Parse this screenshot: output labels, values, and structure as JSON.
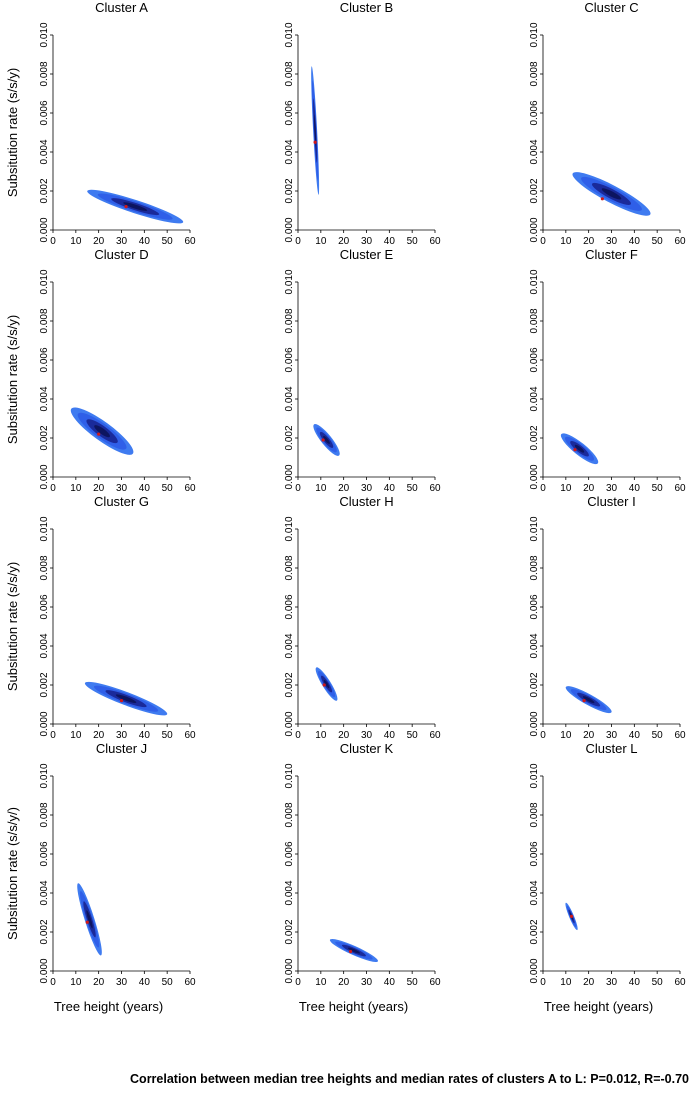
{
  "figure": {
    "caption": "Correlation between median tree heights and median rates of clusters A to L: P=0.012, R=-0.70",
    "colors": {
      "outer": "#3f7bf0",
      "middle": "#2f5fe8",
      "inner": "#1a2a9a",
      "core": "#0d1560",
      "median": "#d01818",
      "axis": "#000000"
    }
  },
  "chart_data": [
    {
      "type": "scatter",
      "title": "Cluster A",
      "xlabel": "",
      "ylabel": "Subsitution rate (s/s/y)",
      "xlim": [
        0,
        60
      ],
      "ylim": [
        0,
        0.01
      ],
      "xticks": [
        "0",
        "10",
        "20",
        "30",
        "40",
        "50",
        "60"
      ],
      "yticks": [
        "0.000",
        "0.002",
        "0.004",
        "0.006",
        "0.008",
        "0.010"
      ],
      "hpd_region": {
        "x_range": [
          15,
          57
        ],
        "y_range": [
          0.0004,
          0.002
        ]
      },
      "median": {
        "x": 32,
        "y": 0.0012
      }
    },
    {
      "type": "scatter",
      "title": "Cluster B",
      "xlabel": "",
      "ylabel": "",
      "xlim": [
        0,
        60
      ],
      "ylim": [
        0,
        0.01
      ],
      "xticks": [
        "0",
        "10",
        "20",
        "30",
        "40",
        "50",
        "60"
      ],
      "yticks": [
        "0.000",
        "0.002",
        "0.004",
        "0.006",
        "0.008",
        "0.010"
      ],
      "hpd_region": {
        "x_range": [
          6,
          9
        ],
        "y_range": [
          0.0018,
          0.0084
        ]
      },
      "median": {
        "x": 7.5,
        "y": 0.0045
      }
    },
    {
      "type": "scatter",
      "title": "Cluster C",
      "xlabel": "",
      "ylabel": "",
      "xlim": [
        0,
        60
      ],
      "ylim": [
        0,
        0.01
      ],
      "xticks": [
        "0",
        "10",
        "20",
        "30",
        "40",
        "50",
        "60"
      ],
      "yticks": [
        "0.000",
        "0.002",
        "0.004",
        "0.006",
        "0.008",
        "0.010"
      ],
      "hpd_region": {
        "x_range": [
          13,
          47
        ],
        "y_range": [
          0.0008,
          0.0029
        ]
      },
      "median": {
        "x": 26,
        "y": 0.0016
      }
    },
    {
      "type": "scatter",
      "title": "Cluster D",
      "xlabel": "",
      "ylabel": "Subsitution rate (s/s/y)",
      "xlim": [
        0,
        60
      ],
      "ylim": [
        0,
        0.01
      ],
      "xticks": [
        "0",
        "10",
        "20",
        "30",
        "40",
        "50",
        "60"
      ],
      "yticks": [
        "0.000",
        "0.002",
        "0.004",
        "0.006",
        "0.008",
        "0.010"
      ],
      "hpd_region": {
        "x_range": [
          8,
          35
        ],
        "y_range": [
          0.0012,
          0.0035
        ]
      },
      "median": {
        "x": 20,
        "y": 0.0022
      }
    },
    {
      "type": "scatter",
      "title": "Cluster E",
      "xlabel": "",
      "ylabel": "",
      "xlim": [
        0,
        60
      ],
      "ylim": [
        0,
        0.01
      ],
      "xticks": [
        "0",
        "10",
        "20",
        "30",
        "40",
        "50",
        "60"
      ],
      "yticks": [
        "0.000",
        "0.002",
        "0.004",
        "0.006",
        "0.008",
        "0.010"
      ],
      "hpd_region": {
        "x_range": [
          7,
          18
        ],
        "y_range": [
          0.0011,
          0.0027
        ]
      },
      "median": {
        "x": 11,
        "y": 0.0019
      }
    },
    {
      "type": "scatter",
      "title": "Cluster F",
      "xlabel": "",
      "ylabel": "",
      "xlim": [
        0,
        60
      ],
      "ylim": [
        0,
        0.01
      ],
      "xticks": [
        "0",
        "10",
        "20",
        "30",
        "40",
        "50",
        "60"
      ],
      "yticks": [
        "0.000",
        "0.002",
        "0.004",
        "0.006",
        "0.008",
        "0.010"
      ],
      "hpd_region": {
        "x_range": [
          8,
          24
        ],
        "y_range": [
          0.0007,
          0.0022
        ]
      },
      "median": {
        "x": 14,
        "y": 0.0014
      }
    },
    {
      "type": "scatter",
      "title": "Cluster G",
      "xlabel": "",
      "ylabel": "Subsitution rate (s/s/y)",
      "xlim": [
        0,
        60
      ],
      "ylim": [
        0,
        0.01
      ],
      "xticks": [
        "0",
        "10",
        "20",
        "30",
        "40",
        "50",
        "60"
      ],
      "yticks": [
        "0.000",
        "0.002",
        "0.004",
        "0.006",
        "0.008",
        "0.010"
      ],
      "hpd_region": {
        "x_range": [
          14,
          50
        ],
        "y_range": [
          0.0005,
          0.0021
        ]
      },
      "median": {
        "x": 30,
        "y": 0.0012
      }
    },
    {
      "type": "scatter",
      "title": "Cluster H",
      "xlabel": "",
      "ylabel": "",
      "xlim": [
        0,
        60
      ],
      "ylim": [
        0,
        0.01
      ],
      "xticks": [
        "0",
        "10",
        "20",
        "30",
        "40",
        "50",
        "60"
      ],
      "yticks": [
        "0.000",
        "0.002",
        "0.004",
        "0.006",
        "0.008",
        "0.010"
      ],
      "hpd_region": {
        "x_range": [
          8,
          17
        ],
        "y_range": [
          0.0012,
          0.0029
        ]
      },
      "median": {
        "x": 11.5,
        "y": 0.002
      }
    },
    {
      "type": "scatter",
      "title": "Cluster I",
      "xlabel": "",
      "ylabel": "",
      "xlim": [
        0,
        60
      ],
      "ylim": [
        0,
        0.01
      ],
      "xticks": [
        "0",
        "10",
        "20",
        "30",
        "40",
        "50",
        "60"
      ],
      "yticks": [
        "0.000",
        "0.002",
        "0.004",
        "0.006",
        "0.008",
        "0.010"
      ],
      "hpd_region": {
        "x_range": [
          10,
          30
        ],
        "y_range": [
          0.0006,
          0.0019
        ]
      },
      "median": {
        "x": 18,
        "y": 0.0012
      }
    },
    {
      "type": "scatter",
      "title": "Cluster J",
      "xlabel": "Tree height (years)",
      "ylabel": "Subsitution rate (s/s/y/)",
      "xlim": [
        0,
        60
      ],
      "ylim": [
        0,
        0.01
      ],
      "xticks": [
        "0",
        "10",
        "20",
        "30",
        "40",
        "50",
        "60"
      ],
      "yticks": [
        "0.000",
        "0.002",
        "0.004",
        "0.006",
        "0.008",
        "0.010"
      ],
      "hpd_region": {
        "x_range": [
          11,
          21
        ],
        "y_range": [
          0.0008,
          0.0045
        ]
      },
      "median": {
        "x": 15,
        "y": 0.0025
      }
    },
    {
      "type": "scatter",
      "title": "Cluster K",
      "xlabel": "Tree height (years)",
      "ylabel": "",
      "xlim": [
        0,
        60
      ],
      "ylim": [
        0,
        0.01
      ],
      "xticks": [
        "0",
        "10",
        "20",
        "30",
        "40",
        "50",
        "60"
      ],
      "yticks": [
        "0.000",
        "0.002",
        "0.004",
        "0.006",
        "0.008",
        "0.010"
      ],
      "hpd_region": {
        "x_range": [
          14,
          35
        ],
        "y_range": [
          0.0005,
          0.0016
        ]
      },
      "median": {
        "x": 23,
        "y": 0.001
      }
    },
    {
      "type": "scatter",
      "title": "Cluster L",
      "xlabel": "Tree height (years)",
      "ylabel": "",
      "xlim": [
        0,
        60
      ],
      "ylim": [
        0,
        0.01
      ],
      "xticks": [
        "0",
        "10",
        "20",
        "30",
        "40",
        "50",
        "60"
      ],
      "yticks": [
        "0.000",
        "0.002",
        "0.004",
        "0.006",
        "0.008",
        "0.010"
      ],
      "hpd_region": {
        "x_range": [
          10,
          15
        ],
        "y_range": [
          0.0021,
          0.0035
        ]
      },
      "median": {
        "x": 12.5,
        "y": 0.0028
      }
    }
  ]
}
